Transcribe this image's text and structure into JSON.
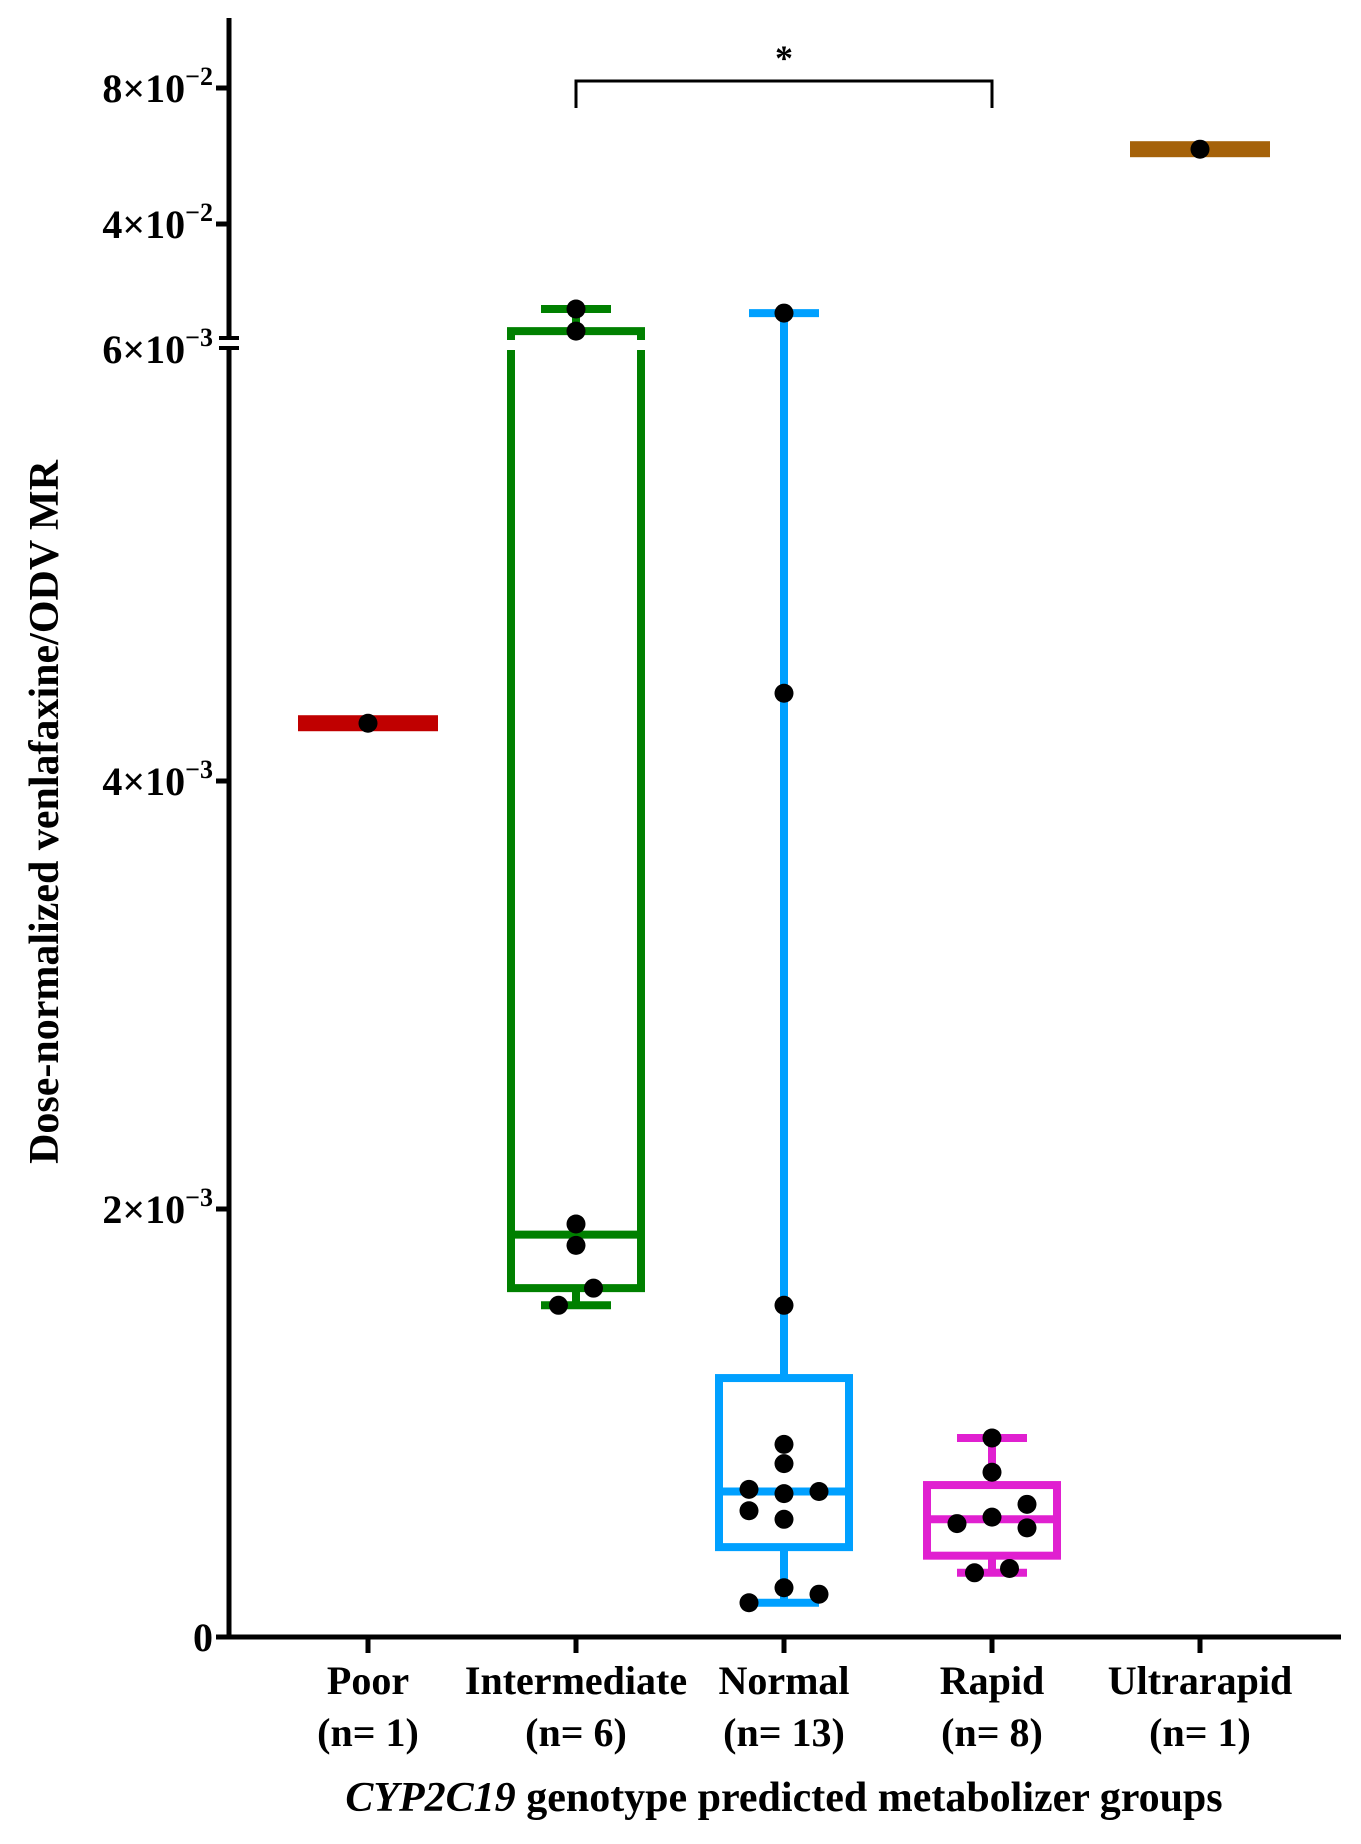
{
  "chart_data": {
    "type": "box",
    "title": "",
    "xlabel_italic": "CYP2C19",
    "xlabel_rest": " genotype predicted metabolizer groups",
    "ylabel": "Dose-normalized venlafaxine/ODV MR",
    "y_axis": {
      "broken": true,
      "lower_segment": {
        "range": [
          0,
          0.006
        ],
        "ticks": [
          {
            "value": 0,
            "base": "0",
            "exp": ""
          },
          {
            "value": 0.002,
            "base": "2×10",
            "exp": "−3"
          },
          {
            "value": 0.004,
            "base": "4×10",
            "exp": "−3"
          },
          {
            "value": 0.006,
            "base": "6×10",
            "exp": "−3"
          }
        ]
      },
      "upper_segment": {
        "range": [
          0.006,
          0.1
        ],
        "ticks": [
          {
            "value": 0.04,
            "base": "4×10",
            "exp": "−2"
          },
          {
            "value": 0.08,
            "base": "8×10",
            "exp": "−2"
          }
        ]
      }
    },
    "categories": [
      {
        "name": "Poor",
        "n_label": "(n= 1)",
        "color": "#C00000"
      },
      {
        "name": "Intermediate",
        "n_label": "(n= 6)",
        "color": "#008000"
      },
      {
        "name": "Normal",
        "n_label": "(n= 13)",
        "color": "#00A0FF"
      },
      {
        "name": "Rapid",
        "n_label": "(n= 8)",
        "color": "#E020D0"
      },
      {
        "name": "Ultrarapid",
        "n_label": "(n= 1)",
        "color": "#A5620A"
      }
    ],
    "series": [
      {
        "name": "Poor",
        "min": 0.00427,
        "q1": 0.00427,
        "median": 0.00427,
        "q3": 0.00427,
        "max": 0.00427,
        "points": [
          [
            0,
            0.00427
          ]
        ]
      },
      {
        "name": "Intermediate",
        "min": 0.00155,
        "q1": 0.00163,
        "median": 0.00188,
        "q3": 0.0085,
        "max": 0.015,
        "points": [
          [
            0,
            0.015
          ],
          [
            0,
            0.0085
          ],
          [
            0,
            0.00193
          ],
          [
            0,
            0.00183
          ],
          [
            0.35,
            0.00163
          ],
          [
            -0.35,
            0.00155
          ]
        ]
      },
      {
        "name": "Normal",
        "min": 0.00016,
        "q1": 0.00042,
        "median": 0.00068,
        "q3": 0.00121,
        "max": 0.0138,
        "points": [
          [
            0,
            0.0138
          ],
          [
            0,
            0.00441
          ],
          [
            0,
            0.00155
          ],
          [
            0,
            0.0009
          ],
          [
            0,
            0.00081
          ],
          [
            -0.7,
            0.00069
          ],
          [
            0,
            0.00067
          ],
          [
            0.7,
            0.00068
          ],
          [
            -0.7,
            0.00059
          ],
          [
            0,
            0.00055
          ],
          [
            0,
            0.00023
          ],
          [
            0.7,
            0.0002
          ],
          [
            -0.7,
            0.00016
          ]
        ]
      },
      {
        "name": "Rapid",
        "min": 0.0003,
        "q1": 0.00038,
        "median": 0.00055,
        "q3": 0.00071,
        "max": 0.00093,
        "points": [
          [
            0,
            0.00093
          ],
          [
            0,
            0.00077
          ],
          [
            0.7,
            0.00062
          ],
          [
            0,
            0.00056
          ],
          [
            -0.7,
            0.00053
          ],
          [
            0.7,
            0.00051
          ],
          [
            0.35,
            0.00032
          ],
          [
            -0.35,
            0.0003
          ]
        ]
      },
      {
        "name": "Ultrarapid",
        "min": 0.062,
        "q1": 0.062,
        "median": 0.062,
        "q3": 0.062,
        "max": 0.062,
        "points": [
          [
            0,
            0.062
          ]
        ]
      }
    ],
    "annotations": [
      {
        "type": "significance_bracket",
        "from": "Intermediate",
        "to": "Rapid",
        "label": "*"
      }
    ],
    "legend": null,
    "grid": false
  }
}
